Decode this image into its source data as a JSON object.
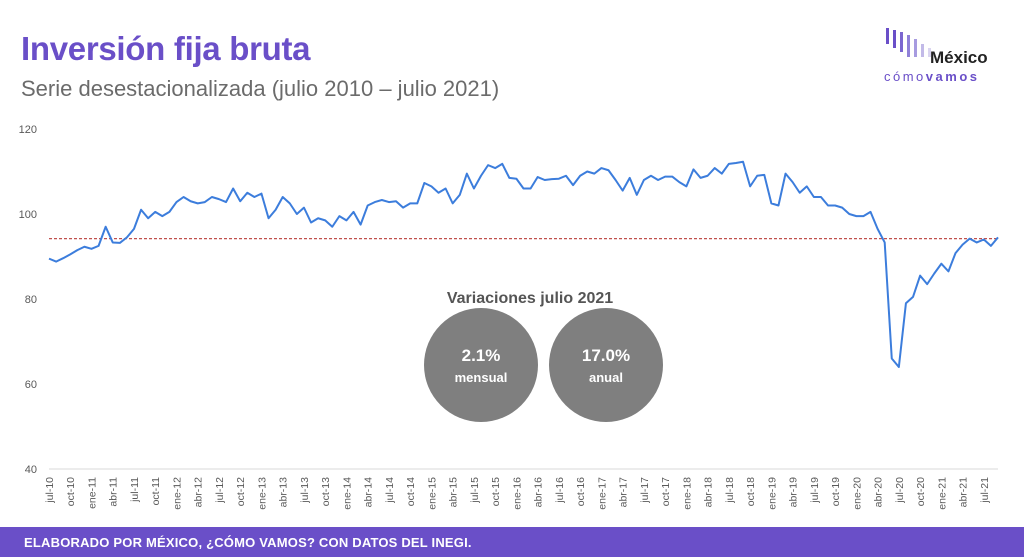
{
  "header": {
    "title": "Inversión fija bruta",
    "subtitle": "Serie desestacionalizada (julio 2010 – julio 2021)"
  },
  "logo": {
    "name": "México",
    "tagline_light": "cómo",
    "tagline_bold": "vamos"
  },
  "callout": {
    "title": "Variaciones julio 2021",
    "monthly": {
      "value": "2.1%",
      "label": "mensual"
    },
    "annual": {
      "value": "17.0%",
      "label": "anual"
    }
  },
  "footer": {
    "text": "ELABORADO POR MÉXICO, ¿CÓMO VAMOS? CON DATOS DEL INEGI."
  },
  "colors": {
    "accent": "#6a4fc8",
    "line": "#3c7ddc",
    "reference": "#c0504d",
    "bubble": "#7f7f7f"
  },
  "chart_data": {
    "type": "line",
    "title": "",
    "xlabel": "",
    "ylabel": "",
    "ylim": [
      40,
      120
    ],
    "yticks": [
      40,
      60,
      80,
      100,
      120
    ],
    "grid": false,
    "x_tick_labels": [
      "jul-10",
      "oct-10",
      "ene-11",
      "abr-11",
      "jul-11",
      "oct-11",
      "ene-12",
      "abr-12",
      "jul-12",
      "oct-12",
      "ene-13",
      "abr-13",
      "jul-13",
      "oct-13",
      "ene-14",
      "abr-14",
      "jul-14",
      "oct-14",
      "ene-15",
      "abr-15",
      "jul-15",
      "oct-15",
      "ene-16",
      "abr-16",
      "jul-16",
      "oct-16",
      "ene-17",
      "abr-17",
      "jul-17",
      "oct-17",
      "ene-18",
      "abr-18",
      "jul-18",
      "oct-18",
      "ene-19",
      "abr-19",
      "jul-19",
      "oct-19",
      "ene-20",
      "abr-20",
      "jul-20",
      "oct-20",
      "ene-21",
      "abr-21",
      "jul-21"
    ],
    "reference_line": {
      "y": 94.2,
      "style": "dashed"
    },
    "series": [
      {
        "values": [
          89.5,
          88.8,
          89.6,
          90.5,
          91.5,
          92.3,
          91.8,
          92.5,
          97.0,
          93.3,
          93.2,
          94.5,
          96.5,
          101.0,
          99.0,
          100.5,
          99.5,
          100.5,
          102.8,
          104.0,
          103.0,
          102.5,
          102.8,
          104.0,
          103.5,
          102.8,
          106.0,
          103.0,
          105.0,
          104.0,
          104.8,
          99.0,
          101.0,
          104.0,
          102.5,
          100.0,
          101.5,
          98.0,
          99.0,
          98.5,
          97.0,
          99.5,
          98.5,
          100.5,
          97.5,
          102.0,
          102.8,
          103.3,
          102.8,
          103.0,
          101.5,
          102.5,
          102.5,
          107.3,
          106.5,
          105.0,
          106.0,
          102.5,
          104.5,
          109.5,
          106.0,
          109.0,
          111.5,
          110.8,
          111.8,
          108.5,
          108.3,
          106.0,
          106.0,
          108.7,
          108.0,
          108.2,
          108.3,
          109.0,
          106.8,
          109.0,
          110.0,
          109.5,
          110.8,
          110.3,
          108.0,
          105.5,
          108.5,
          104.5,
          108.0,
          109.0,
          108.0,
          108.8,
          108.8,
          107.5,
          106.5,
          110.5,
          108.5,
          109.0,
          110.8,
          109.5,
          111.8,
          112.0,
          112.3,
          106.5,
          109.0,
          109.2,
          102.5,
          102.0,
          109.5,
          107.5,
          105.0,
          106.5,
          104.0,
          104.0,
          102.0,
          102.0,
          101.5,
          100.0,
          99.5,
          99.5,
          100.5,
          96.5,
          93.3,
          66.0,
          64.0,
          79.0,
          80.5,
          85.5,
          83.5,
          86.0,
          88.3,
          86.5,
          90.8,
          92.8,
          94.2,
          93.3,
          94.0,
          92.5,
          94.5
        ]
      }
    ]
  }
}
